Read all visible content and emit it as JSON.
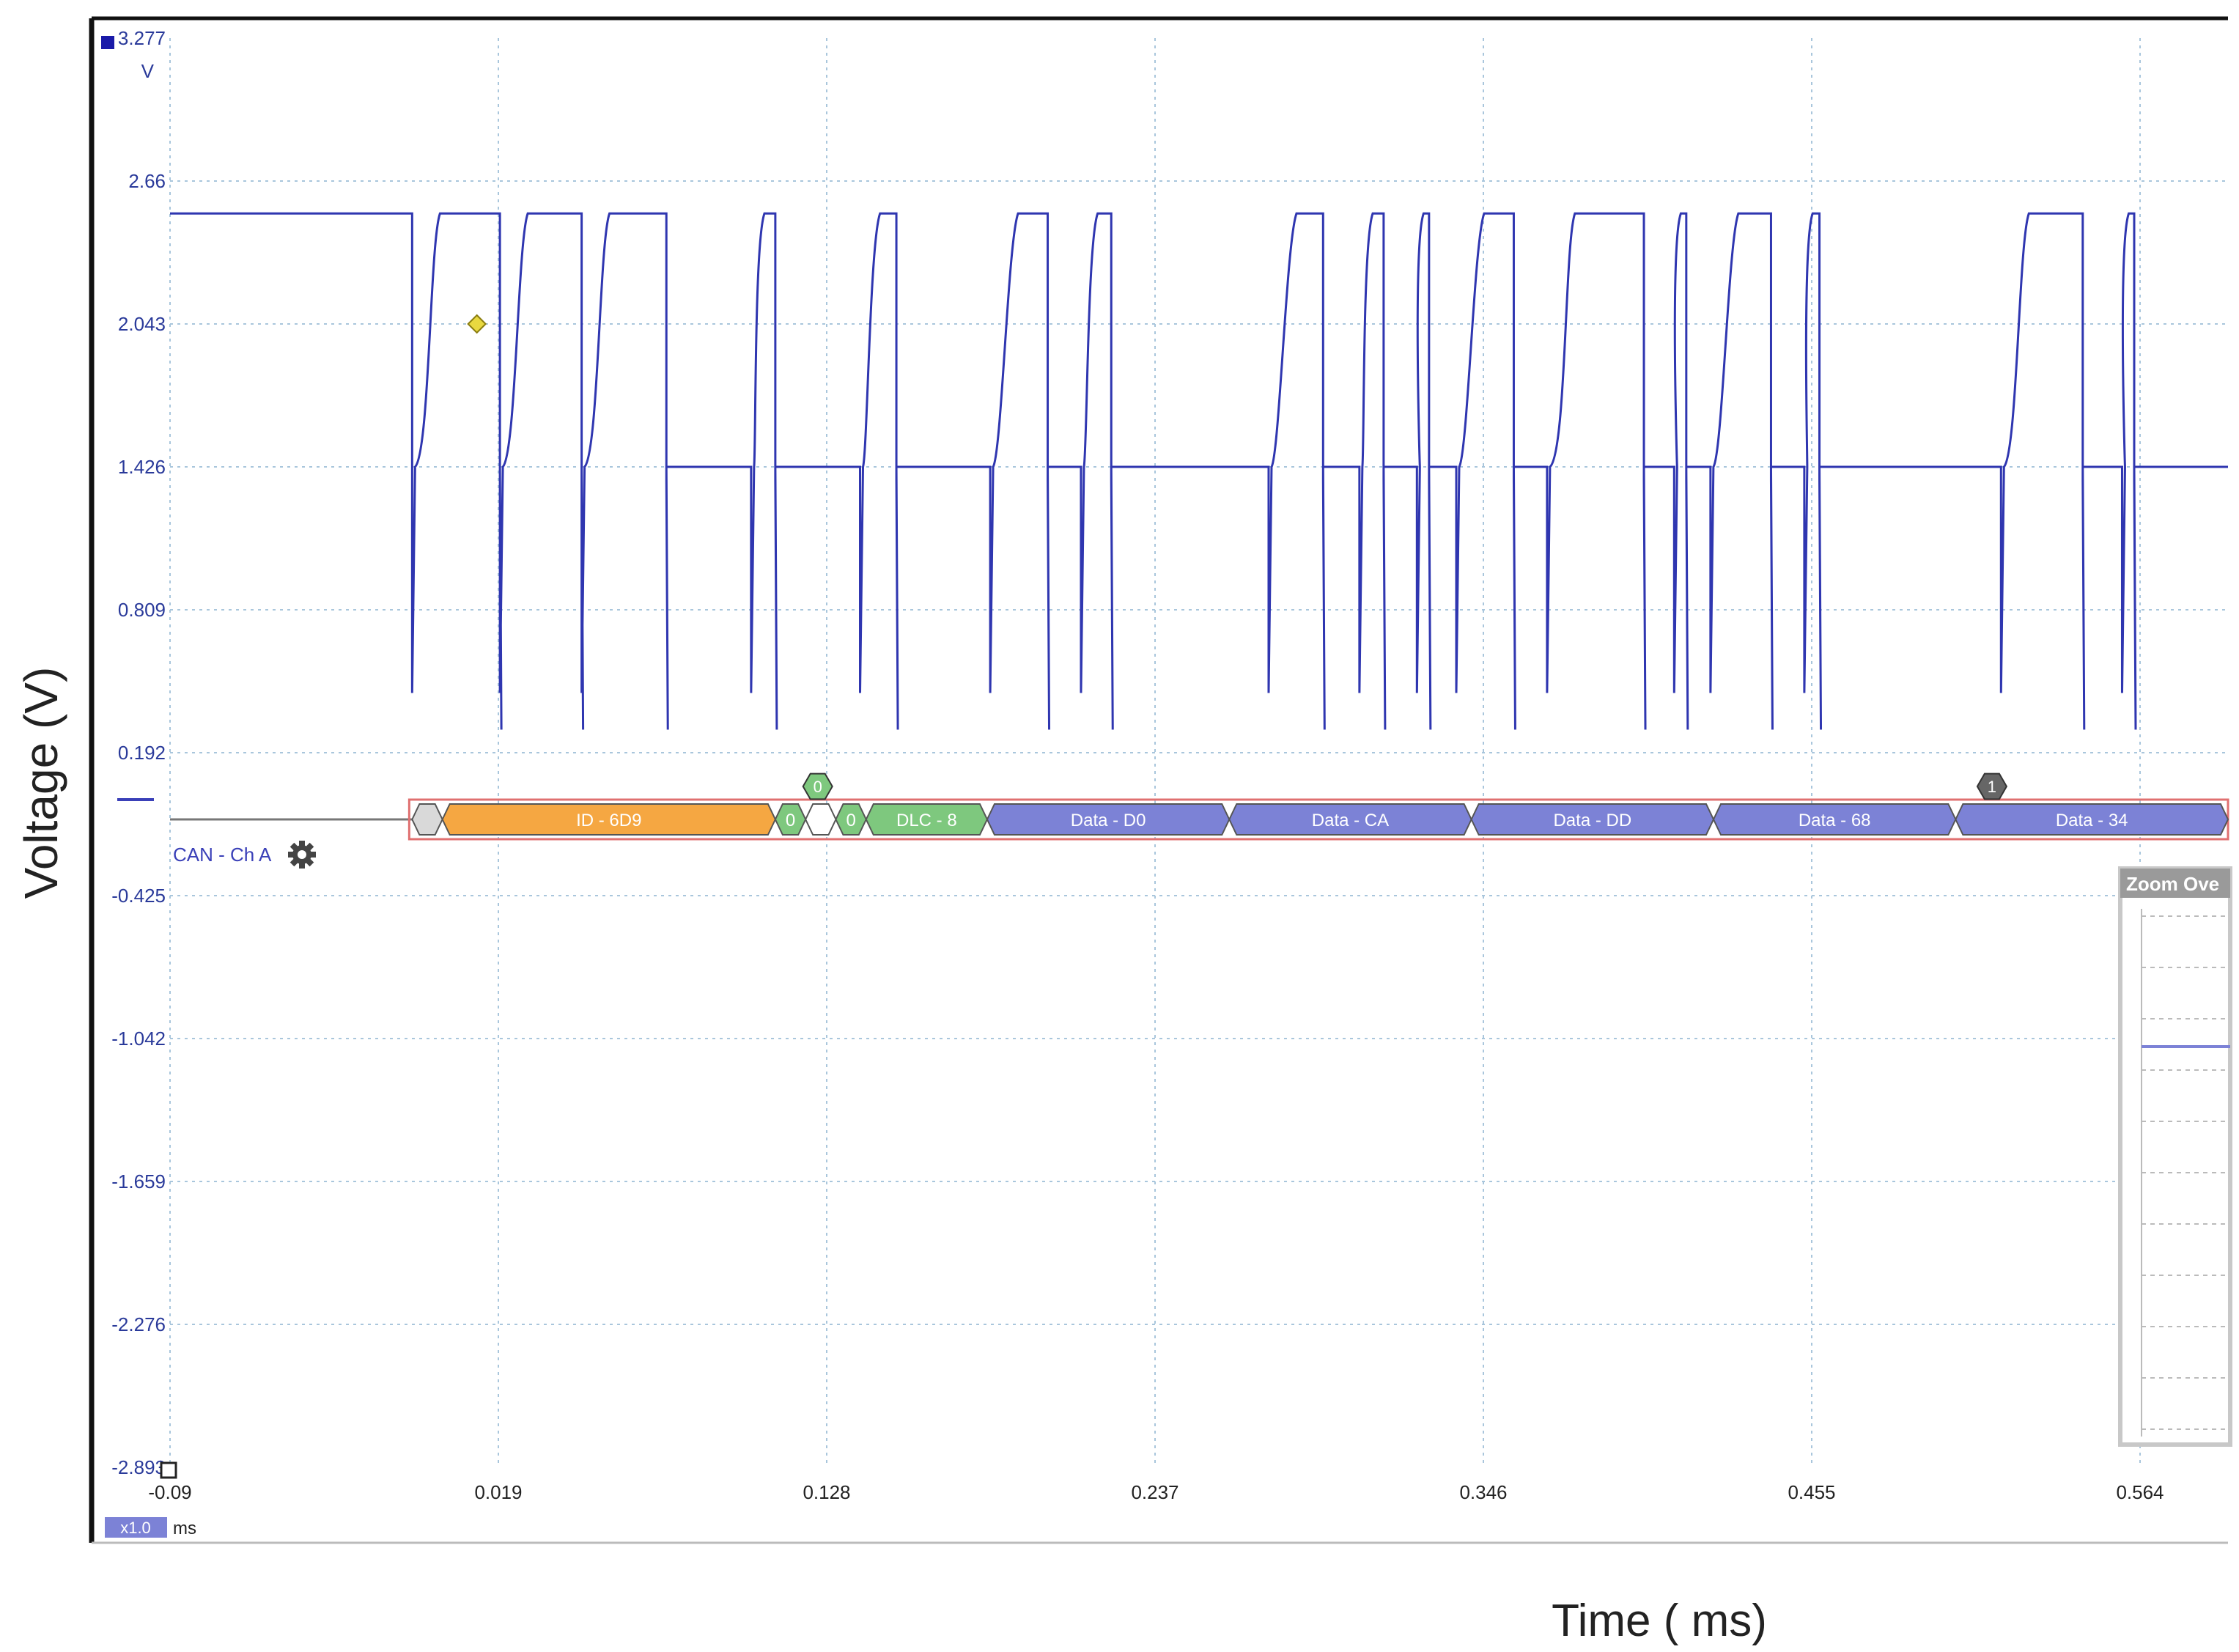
{
  "window": {
    "y_axis_title": "Voltage (V)",
    "x_axis_title": "Time ( ms)"
  },
  "y_axis": {
    "unit": "V",
    "ticks": [
      "3.277",
      "2.66",
      "2.043",
      "1.426",
      "0.809",
      "0.192",
      "-0.425",
      "-1.042",
      "-1.659",
      "-2.276",
      "-2.893"
    ],
    "range": [
      -2.893,
      3.277
    ]
  },
  "x_axis": {
    "unit": "ms",
    "zoom_badge": "x1.0",
    "ticks": [
      "-0.09",
      "0.019",
      "0.128",
      "0.237",
      "0.346",
      "0.455",
      "0.564"
    ]
  },
  "channel": {
    "label": "CAN - Ch A",
    "icon": "gear-icon",
    "color": "#3a40b8"
  },
  "decode_segments": [
    {
      "label": "",
      "color": "#d9d9d9",
      "t0": -0.01,
      "t1": 0.0
    },
    {
      "label": "ID - 6D9",
      "color": "#f5a742",
      "t0": 0.0,
      "t1": 0.11
    },
    {
      "label": "0",
      "color": "#7ec87e",
      "t0": 0.11,
      "t1": 0.12
    },
    {
      "label": "",
      "color": "#ffffff",
      "t0": 0.12,
      "t1": 0.13
    },
    {
      "label": "0",
      "color": "#7ec87e",
      "t0": 0.13,
      "t1": 0.14
    },
    {
      "label": "DLC - 8",
      "color": "#7ec87e",
      "t0": 0.14,
      "t1": 0.18
    },
    {
      "label": "Data - D0",
      "color": "#7c82d6",
      "t0": 0.18,
      "t1": 0.26
    },
    {
      "label": "Data - CA",
      "color": "#7c82d6",
      "t0": 0.26,
      "t1": 0.34
    },
    {
      "label": "Data - DD",
      "color": "#7c82d6",
      "t0": 0.34,
      "t1": 0.42
    },
    {
      "label": "Data - 68",
      "color": "#7c82d6",
      "t0": 0.42,
      "t1": 0.5
    },
    {
      "label": "Data - 34",
      "color": "#7c82d6",
      "t0": 0.5,
      "t1": 0.59
    }
  ],
  "decode_markers": [
    {
      "label": "0",
      "color": "#7ec87e",
      "t": 0.124
    },
    {
      "label": "1",
      "color": "#666666",
      "t": 0.512
    }
  ],
  "zoom_overview": {
    "title": "Zoom Ove"
  },
  "chart_data": {
    "type": "line",
    "title": "",
    "xlabel": "Time ( ms)",
    "ylabel": "Voltage (V)",
    "xlim": [
      -0.09,
      0.59
    ],
    "ylim": [
      -2.893,
      3.277
    ],
    "grid": true,
    "series": [
      {
        "name": "CAN - Ch A",
        "color": "#2f36b0",
        "recessive_level": 1.426,
        "dominant_level": 2.52,
        "idle_level": 2.52,
        "spike_low": 0.45,
        "dominant_pulses": [
          [
            -0.01,
            0.019
          ],
          [
            0.019,
            0.046
          ],
          [
            0.046,
            0.074
          ],
          [
            0.102,
            0.11
          ],
          [
            0.138,
            0.15
          ],
          [
            0.181,
            0.2
          ],
          [
            0.211,
            0.221
          ],
          [
            0.273,
            0.291
          ],
          [
            0.303,
            0.311
          ],
          [
            0.322,
            0.326
          ],
          [
            0.335,
            0.354
          ],
          [
            0.365,
            0.397
          ],
          [
            0.407,
            0.411
          ],
          [
            0.419,
            0.439
          ],
          [
            0.45,
            0.455
          ],
          [
            0.515,
            0.542
          ],
          [
            0.555,
            0.559
          ]
        ],
        "recessive_spans": [
          [
            0.074,
            0.102
          ],
          [
            0.11,
            0.138
          ],
          [
            0.15,
            0.181
          ],
          [
            0.221,
            0.273
          ],
          [
            0.439,
            0.45
          ],
          [
            0.455,
            0.515
          ],
          [
            0.542,
            0.555
          ],
          [
            0.559,
            0.588
          ]
        ]
      }
    ],
    "cursor_marker": {
      "t": 0.0,
      "v": 2.043,
      "color": "#e8d840"
    }
  }
}
